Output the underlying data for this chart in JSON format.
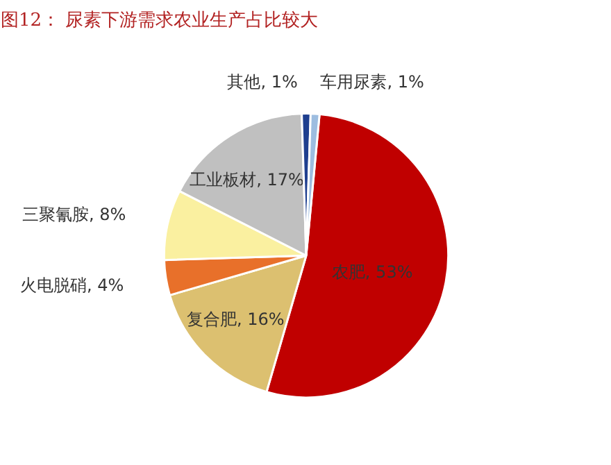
{
  "chart_data": {
    "type": "pie",
    "title": "图12：  尿素下游需求农业生产占比较大",
    "categories": [
      "农肥",
      "复合肥",
      "火电脱硝",
      "三聚氰胺",
      "工业板材",
      "其他",
      "车用尿素"
    ],
    "values": [
      53,
      16,
      4,
      8,
      17,
      1,
      1
    ],
    "colors": [
      "#c00000",
      "#dcc070",
      "#e8702a",
      "#faf0a0",
      "#c0c0c0",
      "#1f3f8f",
      "#9dbde0"
    ],
    "value_labels": [
      "53%",
      "16%",
      "4%",
      "8%",
      "17%",
      "1%",
      "1%"
    ]
  }
}
